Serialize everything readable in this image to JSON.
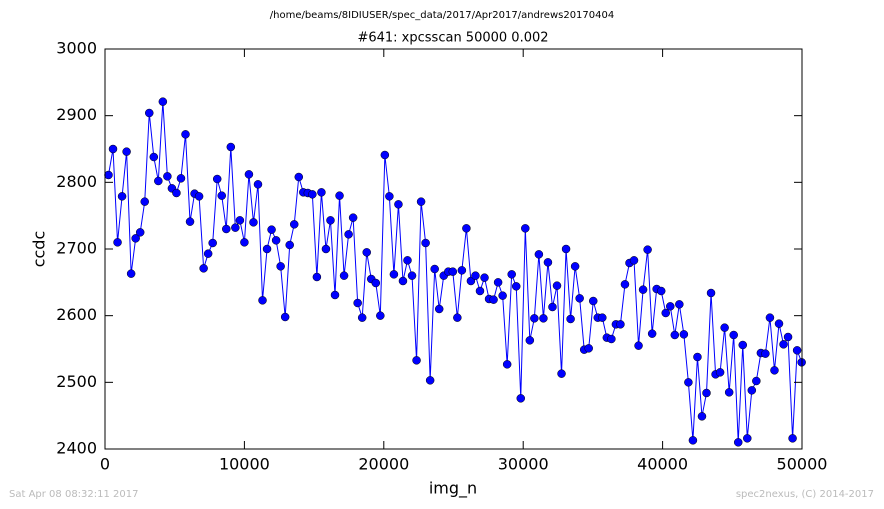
{
  "chart_data": {
    "type": "line",
    "suptitle": "/home/beams/8IDIUSER/spec_data/2017/Apr2017/andrews20170404",
    "title": "#641: xpcsscan 50000 0.002",
    "x_label": "img_n",
    "y_label": "ccdc",
    "footer_left": "Sat Apr 08 08:32:11 2017",
    "footer_right": "spec2nexus, (C) 2014-2017",
    "xlim": [
      0,
      50000
    ],
    "ylim": [
      2400,
      3000
    ],
    "xticks": [
      0,
      10000,
      20000,
      30000,
      40000,
      50000
    ],
    "yticks": [
      2400,
      2500,
      2600,
      2700,
      2800,
      2900,
      3000
    ],
    "x": [
      250,
      575,
      900,
      1225,
      1550,
      1875,
      2200,
      2525,
      2850,
      3175,
      3500,
      3825,
      4150,
      4475,
      4800,
      5125,
      5450,
      5775,
      6100,
      6425,
      6750,
      7075,
      7400,
      7725,
      8050,
      8375,
      8700,
      9025,
      9350,
      9675,
      10000,
      10325,
      10650,
      10975,
      11300,
      11625,
      11950,
      12275,
      12600,
      12925,
      13250,
      13575,
      13900,
      14225,
      14550,
      14875,
      15200,
      15525,
      15850,
      16175,
      16500,
      16825,
      17150,
      17475,
      17800,
      18125,
      18450,
      18775,
      19100,
      19425,
      19750,
      20075,
      20400,
      20725,
      21050,
      21375,
      21700,
      22025,
      22350,
      22675,
      23000,
      23325,
      23650,
      23975,
      24300,
      24625,
      24950,
      25275,
      25600,
      25925,
      26250,
      26575,
      26900,
      27225,
      27550,
      27875,
      28200,
      28525,
      28850,
      29175,
      29500,
      29825,
      30150,
      30475,
      30800,
      31125,
      31450,
      31775,
      32100,
      32425,
      32750,
      33075,
      33400,
      33725,
      34050,
      34375,
      34700,
      35025,
      35350,
      35675,
      36000,
      36325,
      36650,
      36975,
      37300,
      37625,
      37950,
      38275,
      38600,
      38925,
      39250,
      39575,
      39900,
      40225,
      40550,
      40875,
      41200,
      41525,
      41850,
      42175,
      42500,
      42825,
      43150,
      43475,
      43800,
      44125,
      44450,
      44775,
      45100,
      45425,
      45750,
      46075,
      46400,
      46725,
      47050,
      47375,
      47700,
      48025,
      48350,
      48675,
      49000,
      49325,
      49650,
      49975
    ],
    "series": [
      {
        "color": "#0000ff",
        "values": [
          2811,
          2850,
          2710,
          2779,
          2846,
          2663,
          2716,
          2725,
          2771,
          2904,
          2838,
          2802,
          2921,
          2809,
          2791,
          2784,
          2806,
          2872,
          2741,
          2783,
          2779,
          2671,
          2693,
          2709,
          2805,
          2780,
          2730,
          2853,
          2732,
          2743,
          2710,
          2812,
          2740,
          2797,
          2623,
          2700,
          2729,
          2713,
          2674,
          2598,
          2706,
          2737,
          2808,
          2785,
          2784,
          2782,
          2658,
          2785,
          2700,
          2743,
          2631,
          2780,
          2660,
          2722,
          2747,
          2619,
          2597,
          2695,
          2655,
          2649,
          2600,
          2841,
          2779,
          2662,
          2767,
          2652,
          2683,
          2660,
          2533,
          2771,
          2709,
          2503,
          2670,
          2610,
          2660,
          2666,
          2666,
          2597,
          2668,
          2731,
          2652,
          2660,
          2637,
          2657,
          2625,
          2624,
          2650,
          2630,
          2527,
          2662,
          2644,
          2476,
          2731,
          2563,
          2596,
          2692,
          2596,
          2680,
          2613,
          2645,
          2513,
          2700,
          2595,
          2674,
          2626,
          2549,
          2551,
          2622,
          2597,
          2597,
          2567,
          2565,
          2587,
          2587,
          2647,
          2679,
          2683,
          2555,
          2639,
          2699,
          2573,
          2640,
          2637,
          2604,
          2614,
          2571,
          2617,
          2572,
          2500,
          2413,
          2538,
          2449,
          2484,
          2634,
          2512,
          2515,
          2582,
          2485,
          2571,
          2410,
          2556,
          2416,
          2488,
          2502,
          2544,
          2543,
          2597,
          2518,
          2588,
          2557,
          2568,
          2416,
          2548,
          2530
        ]
      }
    ]
  }
}
